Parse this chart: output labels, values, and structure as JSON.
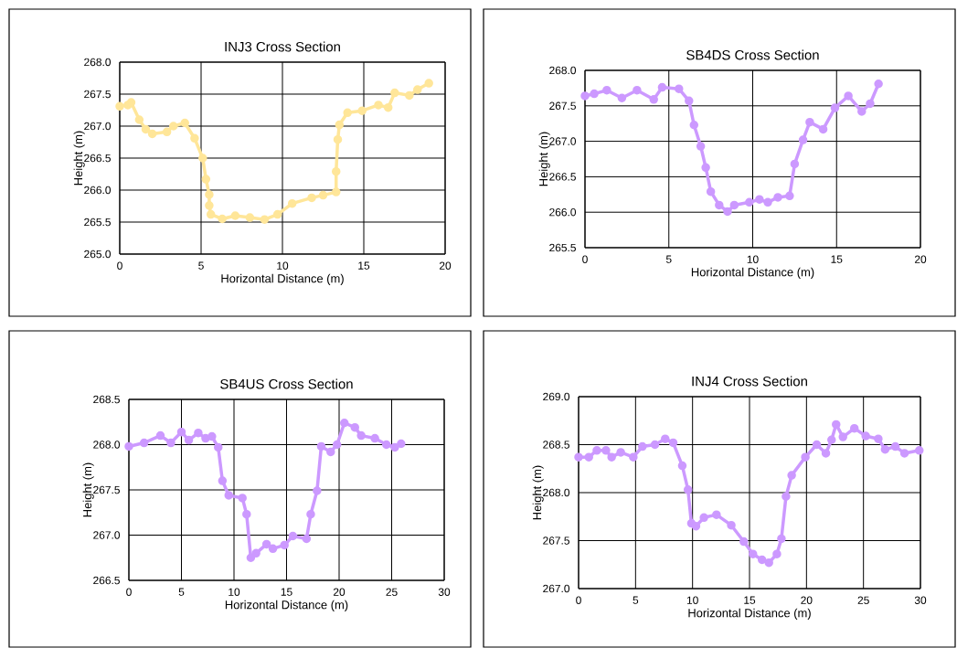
{
  "chart_data": [
    {
      "type": "line",
      "title": "INJ3 Cross Section",
      "xlabel": "Horizontal Distance (m)",
      "ylabel": "Height (m)",
      "xlim": [
        0,
        20
      ],
      "xticks": [
        0,
        5,
        10,
        15,
        20
      ],
      "ylim": [
        265.0,
        268.0
      ],
      "yticks": [
        {
          "value": 265.0,
          "label": "265.0"
        },
        265.5,
        {
          "value": 266.0,
          "label": "266.0"
        },
        266.5,
        {
          "value": 267.0,
          "label": "267.0"
        },
        267.5,
        {
          "value": 268.0,
          "label": "268.0"
        }
      ],
      "grid": true,
      "marker": "circle",
      "series": [
        {
          "color": "#ffe699",
          "x": [
            0,
            0.5,
            0.7,
            1.2,
            1.6,
            2.0,
            2.9,
            3.3,
            4.0,
            4.6,
            5.1,
            5.3,
            5.5,
            5.5,
            5.6,
            6.3,
            7.1,
            8.0,
            8.9,
            9.7,
            10.6,
            11.8,
            12.5,
            13.3,
            13.3,
            13.4,
            13.5,
            14.0,
            14.9,
            15.9,
            16.5,
            16.9,
            17.8,
            18.3,
            19.0
          ],
          "values": [
            267.31,
            267.33,
            267.37,
            267.1,
            266.95,
            266.88,
            266.91,
            267.0,
            267.05,
            266.81,
            266.5,
            266.17,
            265.93,
            265.76,
            265.62,
            265.55,
            265.6,
            265.57,
            265.54,
            265.62,
            265.79,
            265.88,
            265.92,
            265.97,
            266.29,
            266.79,
            267.02,
            267.21,
            267.24,
            267.33,
            267.29,
            267.52,
            267.48,
            267.57,
            267.67
          ]
        }
      ]
    },
    {
      "type": "line",
      "title": "SB4DS Cross Section",
      "xlabel": "Horizontal Distance (m)",
      "ylabel": "Height (m)",
      "xlim": [
        0,
        20
      ],
      "xticks": [
        0,
        5,
        10,
        15,
        20
      ],
      "ylim": [
        265.5,
        268.0
      ],
      "yticks": [
        265.5,
        {
          "value": 266.0,
          "label": "266.0"
        },
        266.5,
        {
          "value": 267.0,
          "label": "267.0"
        },
        267.5,
        {
          "value": 268.0,
          "label": "268.0"
        }
      ],
      "grid": true,
      "marker": "circle",
      "series": [
        {
          "color": "#cc99ff",
          "x": [
            0,
            0.55,
            1.3,
            2.2,
            3.1,
            4.1,
            4.6,
            5.6,
            6.2,
            6.5,
            6.9,
            7.2,
            7.5,
            8.0,
            8.5,
            8.9,
            9.8,
            10.4,
            10.9,
            11.5,
            12.2,
            12.5,
            13.0,
            13.4,
            14.2,
            14.9,
            15.7,
            16.5,
            17.0,
            17.5
          ],
          "values": [
            267.64,
            267.67,
            267.72,
            267.61,
            267.72,
            267.59,
            267.76,
            267.74,
            267.57,
            267.23,
            266.93,
            266.63,
            266.29,
            266.1,
            266.01,
            266.1,
            266.14,
            266.18,
            266.14,
            266.21,
            266.23,
            266.68,
            267.02,
            267.27,
            267.17,
            267.47,
            267.64,
            267.42,
            267.53,
            267.81
          ]
        }
      ]
    },
    {
      "type": "line",
      "title": "SB4US Cross Section",
      "xlabel": "Horizontal Distance (m)",
      "ylabel": "Height (m)",
      "xlim": [
        0,
        30
      ],
      "xticks": [
        0,
        5,
        10,
        15,
        20,
        25,
        30
      ],
      "ylim": [
        266.5,
        268.5
      ],
      "yticks": [
        266.5,
        {
          "value": 267.0,
          "label": "267.0"
        },
        267.5,
        {
          "value": 268.0,
          "label": "268.0"
        },
        268.5
      ],
      "grid": true,
      "marker": "circle",
      "series": [
        {
          "color": "#cc99ff",
          "x": [
            0,
            1.45,
            3.0,
            4.0,
            5.0,
            5.7,
            6.6,
            7.3,
            7.9,
            8.5,
            8.9,
            9.5,
            10.8,
            11.2,
            11.6,
            12.1,
            13.1,
            13.7,
            14.8,
            15.6,
            16.9,
            17.3,
            17.9,
            18.3,
            19.2,
            19.8,
            20.5,
            21.5,
            22.1,
            23.4,
            24.5,
            25.3,
            25.9
          ],
          "values": [
            267.98,
            268.02,
            268.1,
            268.02,
            268.14,
            268.05,
            268.13,
            268.07,
            268.09,
            267.97,
            267.6,
            267.44,
            267.41,
            267.23,
            266.75,
            266.8,
            266.9,
            266.85,
            266.89,
            266.99,
            266.96,
            267.23,
            267.49,
            267.98,
            267.92,
            268.0,
            268.24,
            268.19,
            268.1,
            268.07,
            268.0,
            267.97,
            268.01
          ]
        }
      ]
    },
    {
      "type": "line",
      "title": "INJ4 Cross Section",
      "xlabel": "Horizontal Distance (m)",
      "ylabel": "Height (m)",
      "xlim": [
        0,
        30
      ],
      "xticks": [
        0,
        5,
        10,
        15,
        20,
        25,
        30
      ],
      "ylim": [
        267.0,
        269.0
      ],
      "yticks": [
        {
          "value": 267.0,
          "label": "267.0"
        },
        267.5,
        {
          "value": 268.0,
          "label": "268.0"
        },
        268.5,
        {
          "value": 269.0,
          "label": "269.0"
        }
      ],
      "grid": true,
      "marker": "circle",
      "series": [
        {
          "color": "#cc99ff",
          "x": [
            0,
            0.9,
            1.6,
            2.4,
            2.9,
            3.7,
            4.8,
            5.6,
            6.7,
            7.6,
            8.3,
            9.1,
            9.6,
            9.9,
            10.3,
            11.0,
            12.1,
            13.4,
            14.5,
            15.3,
            16.1,
            16.7,
            17.4,
            17.8,
            18.2,
            18.7,
            19.9,
            20.9,
            21.7,
            22.2,
            22.6,
            23.2,
            24.2,
            25.2,
            26.3,
            26.9,
            27.8,
            28.6,
            29.9
          ],
          "values": [
            268.37,
            268.37,
            268.44,
            268.44,
            268.37,
            268.42,
            268.37,
            268.48,
            268.5,
            268.56,
            268.52,
            268.28,
            268.03,
            267.68,
            267.65,
            267.74,
            267.77,
            267.66,
            267.49,
            267.36,
            267.3,
            267.27,
            267.36,
            267.52,
            267.96,
            268.18,
            268.37,
            268.5,
            268.41,
            268.55,
            268.71,
            268.58,
            268.67,
            268.59,
            268.56,
            268.45,
            268.48,
            268.41,
            268.44
          ]
        }
      ]
    }
  ]
}
